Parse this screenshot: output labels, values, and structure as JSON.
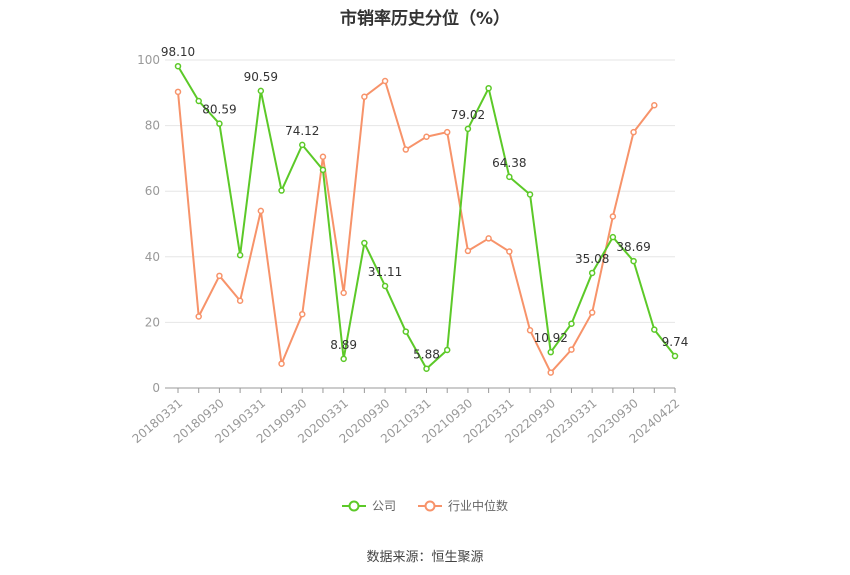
{
  "chart_data": {
    "type": "line",
    "title": "市销率历史分位（%）",
    "ylim": [
      0,
      100
    ],
    "yticks": [
      0,
      20,
      40,
      60,
      80,
      100
    ],
    "grid": true,
    "legend_position": "bottom",
    "x": [
      "20180331",
      "20180630",
      "20180930",
      "20181231",
      "20190331",
      "20190630",
      "20190930",
      "20191231",
      "20200331",
      "20200630",
      "20200930",
      "20201231",
      "20210331",
      "20210630",
      "20210930",
      "20211231",
      "20220331",
      "20220630",
      "20220930",
      "20221231",
      "20230331",
      "20230630",
      "20230930",
      "20231231",
      "20240422"
    ],
    "xtick_labels": [
      "20180331",
      "20180930",
      "20190331",
      "20190930",
      "20200331",
      "20200930",
      "20210331",
      "20210930",
      "20220331",
      "20220930",
      "20230331",
      "20230930",
      "20240422"
    ],
    "series": [
      {
        "name": "公司",
        "color": "#5cc928",
        "values": [
          98.1,
          87.5,
          80.59,
          40.5,
          90.59,
          60.2,
          74.12,
          66.5,
          8.89,
          44.2,
          31.11,
          17.2,
          5.88,
          11.6,
          79.02,
          91.4,
          64.38,
          59.0,
          10.92,
          19.6,
          35.08,
          46.0,
          38.69,
          17.8,
          9.74
        ],
        "data_labels": {
          "0": "98.10",
          "2": "80.59",
          "4": "90.59",
          "6": "74.12",
          "8": "8.89",
          "10": "31.11",
          "12": "5.88",
          "14": "79.02",
          "16": "64.38",
          "18": "10.92",
          "20": "35.08",
          "22": "38.69",
          "24": "9.74"
        }
      },
      {
        "name": "行业中位数",
        "color": "#f7936a",
        "values": [
          90.3,
          21.8,
          34.2,
          26.6,
          54.0,
          7.4,
          22.5,
          70.5,
          29.0,
          88.8,
          93.6,
          72.7,
          76.6,
          78.0,
          41.8,
          45.6,
          41.6,
          17.6,
          4.7,
          11.7,
          23.0,
          52.3,
          78.0,
          86.2,
          null
        ]
      }
    ]
  },
  "source": "数据来源：恒生聚源"
}
